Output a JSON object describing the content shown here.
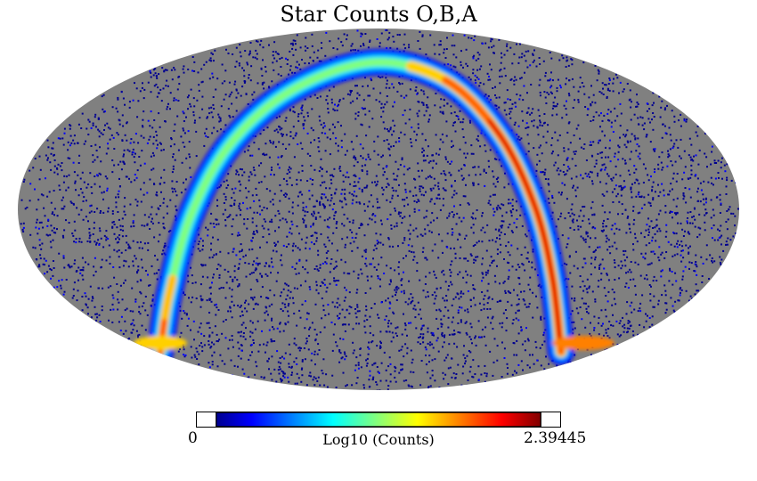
{
  "title": "Star Counts O,B,A",
  "projection": "mollweide",
  "background_color": "#808080",
  "colormap": [
    "#00008f",
    "#0000ff",
    "#00ffff",
    "#ffff00",
    "#ff0000",
    "#800000"
  ],
  "colorbar": {
    "min_label": "0",
    "max_label": "2.39445",
    "label": "Log10 (Counts)"
  },
  "map_data": {
    "quantity": "log10 star counts, O/B/A stars",
    "min": 0,
    "max": 2.39445
  }
}
